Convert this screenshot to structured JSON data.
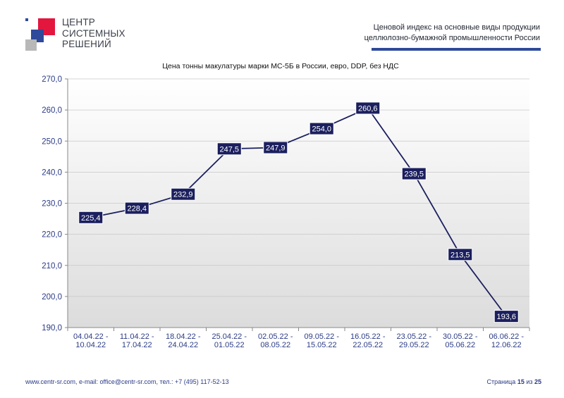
{
  "header": {
    "logo_lines": [
      "ЦЕНТР",
      "СИСТЕМНЫХ",
      "РЕШЕНИЙ"
    ],
    "title_line1": "Ценовой индекс  на  основные виды продукции",
    "title_line2": "целлюлозно-бумажной промышленности России"
  },
  "colors": {
    "brand_blue": "#2f4a9a",
    "brand_red": "#e3163e",
    "brand_gray": "#b8b8b8",
    "label_fill": "#1b1f5e",
    "line": "#1b2060"
  },
  "chart_data": {
    "type": "line",
    "title": "Цена тонны макулатуры марки МС-5Б в России, евро, DDP, без НДС",
    "categories": [
      "04.04.22 - 10.04.22",
      "11.04.22 - 17.04.22",
      "18.04.22 - 24.04.22",
      "25.04.22 - 01.05.22",
      "02.05.22 - 08.05.22",
      "09.05.22 - 15.05.22",
      "16.05.22 - 22.05.22",
      "23.05.22 - 29.05.22",
      "30.05.22 - 05.06.22",
      "06.06.22 - 12.06.22"
    ],
    "category_lines": [
      [
        "04.04.22 -",
        "10.04.22"
      ],
      [
        "11.04.22 -",
        "17.04.22"
      ],
      [
        "18.04.22 -",
        "24.04.22"
      ],
      [
        "25.04.22 -",
        "01.05.22"
      ],
      [
        "02.05.22 -",
        "08.05.22"
      ],
      [
        "09.05.22 -",
        "15.05.22"
      ],
      [
        "16.05.22 -",
        "22.05.22"
      ],
      [
        "23.05.22 -",
        "29.05.22"
      ],
      [
        "30.05.22 -",
        "05.06.22"
      ],
      [
        "06.06.22 -",
        "12.06.22"
      ]
    ],
    "values": [
      225.4,
      228.4,
      232.9,
      247.5,
      247.9,
      254.0,
      260.6,
      239.5,
      213.5,
      193.6
    ],
    "value_labels": [
      "225,4",
      "228,4",
      "232,9",
      "247,5",
      "247,9",
      "254,0",
      "260,6",
      "239,5",
      "213,5",
      "193,6"
    ],
    "ylim": [
      190,
      270
    ],
    "yticks": [
      190,
      200,
      210,
      220,
      230,
      240,
      250,
      260,
      270
    ],
    "ytick_labels": [
      "190,0",
      "200,0",
      "210,0",
      "220,0",
      "230,0",
      "240,0",
      "250,0",
      "260,0",
      "270,0"
    ],
    "grid": true,
    "legend": "none"
  },
  "footer": {
    "contacts": "www.centr-sr.com, e-mail: office@centr-sr.com, тел.: +7 (495) 117-52-13",
    "page_prefix": "Страница ",
    "page_current": "15",
    "page_of": " из ",
    "page_total": "25"
  }
}
